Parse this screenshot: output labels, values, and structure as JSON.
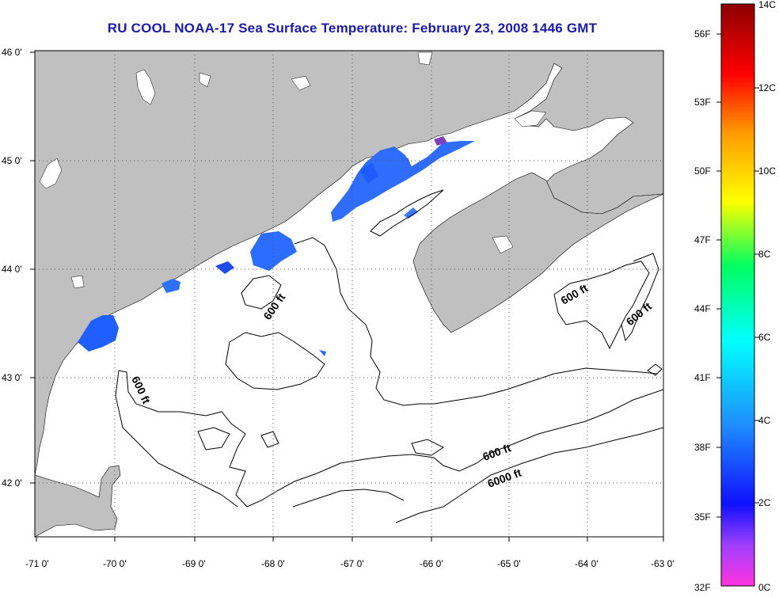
{
  "title": "RU COOL  NOAA-17  Sea Surface Temperature:  February 23, 2008 1446 GMT",
  "map": {
    "lon_ticks": [
      "-71 0'",
      "-70 0'",
      "-69 0'",
      "-68 0'",
      "-67 0'",
      "-66 0'",
      "-65 0'",
      "-64 0'",
      "-63 0'"
    ],
    "lat_ticks": [
      "46 0'",
      "45 0'",
      "44 0'",
      "43 0'",
      "42 0'"
    ],
    "lon_range": [
      -71,
      -63
    ],
    "lat_range": [
      41.5,
      46
    ],
    "contour_labels": [
      "600 ft",
      "600 ft",
      "600 ft",
      "600 ft",
      "600 ft",
      "6000 ft"
    ],
    "colors": {
      "land": "#c0c0c0",
      "ocean": "#ffffff",
      "cloud": "#ffffff",
      "title": "#1a1aa8"
    }
  },
  "colorbar": {
    "celsius_labels": [
      "14C",
      "12C",
      "10C",
      "8C",
      "6C",
      "4C",
      "2C",
      "0C"
    ],
    "fahrenheit_labels": [
      "56F",
      "53F",
      "50F",
      "47F",
      "44F",
      "41F",
      "38F",
      "35F",
      "32F"
    ],
    "range_c": [
      0,
      14
    ]
  }
}
